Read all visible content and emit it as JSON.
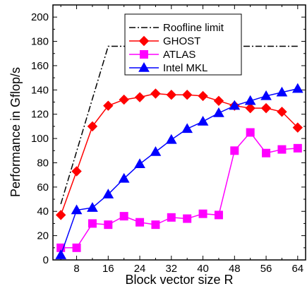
{
  "chart_data": {
    "type": "line",
    "title": "",
    "xlabel": "Block vector size R",
    "ylabel": "Performance in Gflop/s",
    "xlim": [
      2,
      66
    ],
    "ylim": [
      0,
      210
    ],
    "xticks": [
      8,
      16,
      24,
      32,
      40,
      48,
      56,
      64
    ],
    "yticks": [
      0,
      20,
      40,
      60,
      80,
      100,
      120,
      140,
      160,
      180,
      200
    ],
    "grid": false,
    "legend_position": "top-right",
    "series": [
      {
        "name": "Roofline limit",
        "style": "dash-dot",
        "color": "#000000",
        "marker": "none",
        "x": [
          4,
          16,
          64
        ],
        "y": [
          46,
          176,
          176
        ]
      },
      {
        "name": "GHOST",
        "style": "solid",
        "color": "#ff0000",
        "marker": "diamond",
        "x": [
          4,
          8,
          12,
          16,
          20,
          24,
          28,
          32,
          36,
          40,
          44,
          48,
          52,
          56,
          60,
          64
        ],
        "y": [
          37,
          73,
          110,
          127,
          132,
          134,
          137,
          136,
          136,
          135,
          131,
          127,
          125,
          125,
          122,
          109
        ]
      },
      {
        "name": "ATLAS",
        "style": "solid",
        "color": "#ff00ff",
        "marker": "square",
        "x": [
          4,
          8,
          12,
          16,
          20,
          24,
          28,
          32,
          36,
          40,
          44,
          48,
          52,
          56,
          60,
          64
        ],
        "y": [
          10,
          10,
          30,
          29,
          36,
          31,
          29,
          35,
          34,
          38,
          37,
          90,
          105,
          88,
          91,
          92
        ]
      },
      {
        "name": "Intel MKL",
        "style": "solid",
        "color": "#0000ff",
        "marker": "triangle",
        "x": [
          4,
          8,
          12,
          16,
          20,
          24,
          28,
          32,
          36,
          40,
          44,
          48,
          52,
          56,
          60,
          64
        ],
        "y": [
          4,
          41,
          43,
          54,
          67,
          79,
          89,
          99,
          108,
          114,
          121,
          127,
          131,
          135,
          138,
          141
        ]
      }
    ]
  }
}
